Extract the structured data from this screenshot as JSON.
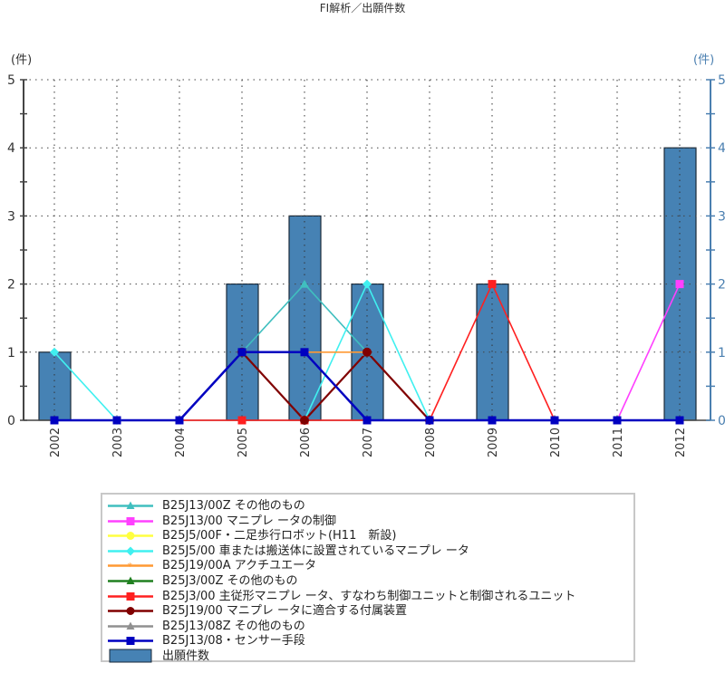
{
  "chart_data": {
    "type": "bar+line",
    "title": "FI解析／出願件数",
    "xlabel": "",
    "ylabel": "(件)",
    "ylabel_right": "(件)",
    "ylim": [
      0,
      5
    ],
    "yticks": [
      0,
      1,
      2,
      3,
      4,
      5
    ],
    "grid": true,
    "legend_position": "bottom",
    "categories": [
      "2002",
      "2003",
      "2004",
      "2005",
      "2006",
      "2007",
      "2008",
      "2009",
      "2010",
      "2011",
      "2012"
    ],
    "bars": {
      "name": "出願件数",
      "color": "#4682B4",
      "values": [
        1,
        0,
        0,
        2,
        3,
        2,
        0,
        2,
        0,
        0,
        4
      ]
    },
    "series": [
      {
        "name": "B25J13/00Z その他のもの",
        "color": "#40BFBF",
        "marker": "triangle",
        "values": [
          null,
          null,
          null,
          1,
          2,
          1,
          null,
          null,
          null,
          null,
          null
        ]
      },
      {
        "name": "B25J13/00 マニプレ ータの制御",
        "color": "#FF40FF",
        "marker": "square",
        "values": [
          null,
          null,
          null,
          null,
          null,
          null,
          null,
          null,
          null,
          0,
          2
        ]
      },
      {
        "name": "B25J5/00F・二足歩行ロボット(H11　新設)",
        "color": "#FFFF40",
        "marker": "circle",
        "values": [
          null,
          null,
          null,
          null,
          null,
          null,
          null,
          null,
          null,
          null,
          null
        ]
      },
      {
        "name": "B25J5/00 車または搬送体に設置されているマニプレ ータ",
        "color": "#40F0F0",
        "marker": "diamond",
        "values": [
          1,
          0,
          null,
          null,
          0,
          2,
          0,
          null,
          null,
          null,
          null
        ]
      },
      {
        "name": "B25J19/00A アクチユエータ",
        "color": "#FF9933",
        "marker": "star",
        "values": [
          null,
          null,
          null,
          null,
          1,
          1,
          null,
          null,
          null,
          null,
          null
        ]
      },
      {
        "name": "B25J3/00Z その他のもの",
        "color": "#208020",
        "marker": "triangle",
        "values": [
          null,
          null,
          null,
          null,
          null,
          null,
          null,
          null,
          null,
          null,
          null
        ]
      },
      {
        "name": "B25J3/00 主従形マニプレ ータ、すなわち制御ユニットと制御されるユニット",
        "color": "#FF2020",
        "marker": "square",
        "values": [
          null,
          null,
          0,
          0,
          0,
          0,
          0,
          2,
          0,
          null,
          null
        ]
      },
      {
        "name": "B25J19/00 マニプレ ータに適合する付属装置",
        "color": "#800000",
        "marker": "circle",
        "values": [
          null,
          null,
          null,
          1,
          0,
          1,
          0,
          null,
          null,
          null,
          null
        ]
      },
      {
        "name": "B25J13/08Z その他のもの",
        "color": "#909090",
        "marker": "triangle",
        "values": [
          null,
          null,
          null,
          null,
          null,
          null,
          null,
          null,
          null,
          null,
          null
        ]
      },
      {
        "name": "B25J13/08・センサー手段",
        "color": "#0000C0",
        "marker": "square",
        "values": [
          0,
          0,
          0,
          1,
          1,
          0,
          0,
          0,
          0,
          0,
          0
        ]
      }
    ]
  },
  "title": "FI解析／出願件数",
  "axis": {
    "left_unit": "(件)",
    "right_unit": "(件)",
    "yticks": [
      "0",
      "1",
      "2",
      "3",
      "4",
      "5"
    ]
  },
  "legend": [
    {
      "label": "B25J13/00Z その他のもの",
      "color": "#40BFBF",
      "marker": "triangle"
    },
    {
      "label": "B25J13/00 マニプレ ータの制御",
      "color": "#FF40FF",
      "marker": "square"
    },
    {
      "label": "B25J5/00F・二足歩行ロボット(H11　新設)",
      "color": "#FFFF40",
      "marker": "circle"
    },
    {
      "label": "B25J5/00 車または搬送体に設置されているマニプレ ータ",
      "color": "#40F0F0",
      "marker": "diamond"
    },
    {
      "label": "B25J19/00A アクチユエータ",
      "color": "#FF9933",
      "marker": "star"
    },
    {
      "label": "B25J3/00Z その他のもの",
      "color": "#208020",
      "marker": "triangle"
    },
    {
      "label": "B25J3/00 主従形マニプレ ータ、すなわち制御ユニットと制御されるユニット",
      "color": "#FF2020",
      "marker": "square"
    },
    {
      "label": "B25J19/00 マニプレ ータに適合する付属装置",
      "color": "#800000",
      "marker": "circle"
    },
    {
      "label": "B25J13/08Z その他のもの",
      "color": "#909090",
      "marker": "triangle"
    },
    {
      "label": "B25J13/08・センサー手段",
      "color": "#0000C0",
      "marker": "square"
    },
    {
      "label": "出願件数",
      "color": "#4682B4",
      "marker": "bar"
    }
  ]
}
